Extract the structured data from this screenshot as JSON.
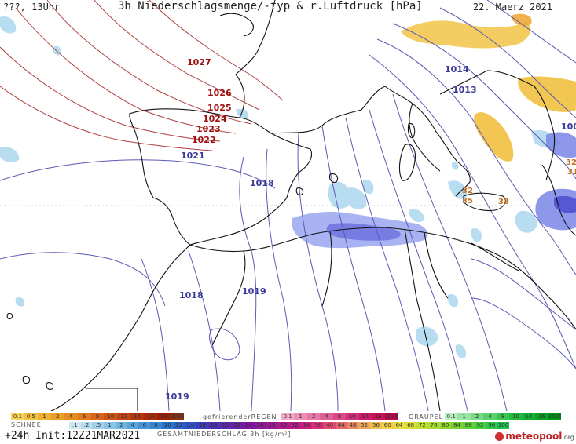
{
  "header": {
    "left": "???, 13Uhr",
    "title": "3h Niederschlagsmenge/-typ & r.Luftdruck [hPa]",
    "date": "22. Maerz 2021"
  },
  "isobars": {
    "red": [
      "1027",
      "1026",
      "1025",
      "1024",
      "1023",
      "1022"
    ],
    "blue": [
      "1021",
      "1018",
      "1014",
      "1013",
      "1018",
      "1019",
      "1019",
      "100"
    ],
    "orange": [
      "32",
      "35",
      "33",
      "32",
      "31"
    ]
  },
  "legend": {
    "rain_scale": [
      "0.1",
      "0.5",
      "1",
      "2",
      "4",
      "6",
      "8",
      "10",
      "12",
      "14",
      "16",
      "18",
      "2025+"
    ],
    "freezing_label": "gefrierenderREGEN",
    "freezing_scale": [
      "0.1",
      "1",
      "2",
      "4",
      "8",
      "10",
      "14",
      "16",
      "2025+"
    ],
    "graupel_label": "GRAUPEL",
    "graupel_scale": [
      "0.1",
      "1",
      "2",
      "4",
      "8",
      "10",
      "14",
      "16",
      "2025+"
    ],
    "snow_label": "SCHNEE",
    "snow_scale": [
      ".1",
      ".2",
      ".5",
      "1",
      "2",
      "4",
      "6",
      "8",
      "10",
      "12",
      "14",
      "16",
      "18",
      "20",
      "22",
      "24",
      "26",
      "28",
      "30",
      "32",
      "34",
      "36",
      "40",
      "44",
      "48",
      "52",
      "56",
      "60",
      "64",
      "68",
      "72",
      "76",
      "80",
      "84",
      "88",
      "92",
      "96",
      "100"
    ],
    "total_label": "GESAMTNIEDERSCHLAG 3h [kg/m²]",
    "colors": {
      "rain": [
        "#f6d25a",
        "#f2c040",
        "#eeb030",
        "#ea9e28",
        "#e68a22",
        "#e0781e",
        "#d8661a",
        "#cc5416",
        "#c04412",
        "#b4360e",
        "#a82a0a",
        "#9c2008",
        "#903010"
      ],
      "freezing": [
        "#f2a8c8",
        "#ec90b8",
        "#e678a8",
        "#e06098",
        "#da4888",
        "#d43078",
        "#ce1868",
        "#c81058",
        "#b80848"
      ],
      "graupel": [
        "#b8eec0",
        "#98e4a4",
        "#78da88",
        "#58d06c",
        "#38c650",
        "#20bc40",
        "#10b030",
        "#08a424",
        "#009818"
      ],
      "snow": [
        "#cfe8f4",
        "#b8dcf0",
        "#a0d0ec",
        "#88c4e8",
        "#70b4e2",
        "#5aa4dc",
        "#4894d6",
        "#3884d0",
        "#2874ca",
        "#2a60c4",
        "#3050be",
        "#3c3cb8",
        "#4c30b2",
        "#5c28ac",
        "#6c20a6",
        "#7c18a0",
        "#8c189a",
        "#9c1894",
        "#ac188e",
        "#bc1888",
        "#cc2080",
        "#d83078",
        "#e04870",
        "#e46868",
        "#e88860",
        "#eca858",
        "#f0c050",
        "#f0d048",
        "#e8dc40",
        "#d8e038",
        "#c0e030",
        "#a8dc30",
        "#90d830",
        "#78d430",
        "#60d038",
        "#48cc40",
        "#30c848",
        "#20c050"
      ]
    }
  },
  "run_info": "+24h Init:12Z21MAR2021",
  "brand": {
    "name": "meteopool",
    "suffix": ".org"
  }
}
